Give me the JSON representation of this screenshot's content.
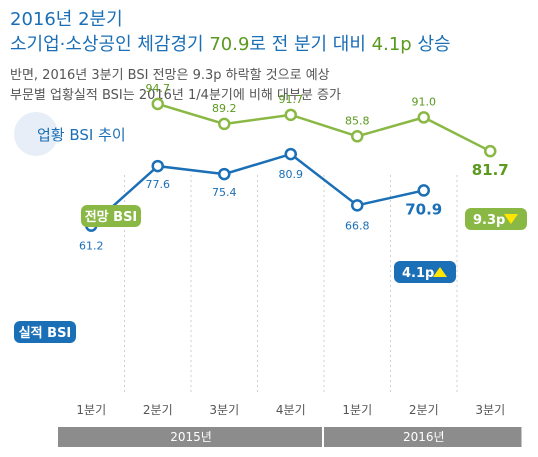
{
  "header": {
    "title_line1": "2016년 2분기",
    "title_line2_prefix": "소기업·소상공인 체감경기 ",
    "title_line2_value1": "70.9",
    "title_line2_mid": "로 전 분기 대비 ",
    "title_line2_value2": "4.1p",
    "title_line2_suffix": " 상승",
    "subtitle1": "반면, 2016년 3분기 BSI 전망은 9.3p 하락할 것으로 예상",
    "subtitle2": "부문별 업황실적 BSI는 2016년 1/4분기에 비해 대부분 증가"
  },
  "section": {
    "label": "업황 BSI 추이"
  },
  "colors": {
    "forecast": "#8ab845",
    "actual": "#1a6fb6",
    "forecast_text": "#5a9a1e",
    "actual_text": "#1a6fb6",
    "band": "#8c8c8c",
    "grid": "#cfcfcf"
  },
  "chart_data": {
    "type": "line",
    "categories": [
      "1분기",
      "2분기",
      "3분기",
      "4분기",
      "1분기",
      "2분기",
      "3분기"
    ],
    "year_groups": [
      {
        "label": "2015년",
        "span": [
          0,
          3
        ]
      },
      {
        "label": "2016년",
        "span": [
          4,
          6
        ]
      }
    ],
    "series": [
      {
        "name": "전망 BSI",
        "values": [
          null,
          94.7,
          89.2,
          91.7,
          85.8,
          91.0,
          81.7
        ],
        "labels": [
          "",
          "94.7",
          "89.2",
          "91.7",
          "85.8",
          "91.0",
          "81.7"
        ]
      },
      {
        "name": "실적 BSI",
        "values": [
          61.2,
          77.6,
          75.4,
          80.9,
          66.8,
          70.9,
          null
        ],
        "labels": [
          "61.2",
          "77.6",
          "75.4",
          "80.9",
          "66.8",
          "70.9",
          ""
        ]
      }
    ],
    "annotations": [
      {
        "text": "9.3p",
        "arrow": "down",
        "series": "전망 BSI"
      },
      {
        "text": "4.1p",
        "arrow": "up",
        "series": "실적 BSI"
      }
    ],
    "grid": "vertical dashed",
    "ylim": [
      50,
      110
    ]
  }
}
